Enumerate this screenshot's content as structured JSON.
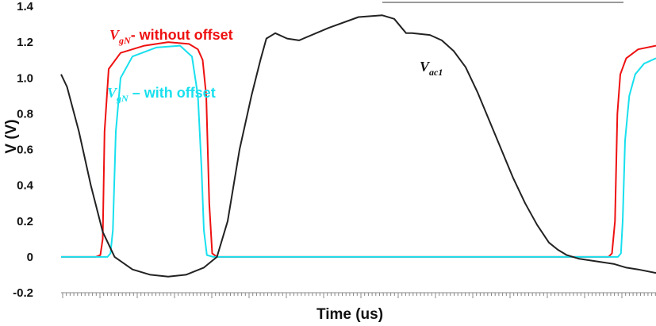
{
  "chart_data": {
    "type": "line",
    "xlabel": "Time (us)",
    "ylabel": "V (V)",
    "ylim": [
      -0.2,
      1.4
    ],
    "yticks": [
      -0.2,
      0,
      0.2,
      0.4,
      0.6,
      0.8,
      1.0,
      1.2,
      1.4
    ],
    "ytick_labels": [
      "-0.2",
      "0",
      "0.2",
      "0.4",
      "0.6",
      "0.8",
      "1.0",
      "1.2",
      "1.4"
    ],
    "xlim": [
      0,
      1
    ],
    "grid": false,
    "annotations": {
      "red": {
        "main": "V",
        "sub": "gN",
        "suffix": "- without offset",
        "color": "#ee1111"
      },
      "cyan": {
        "main": "V",
        "sub": "gN",
        "suffix": " – with offset",
        "color": "#18e0ee"
      },
      "black": {
        "main": "V",
        "sub": "ac1",
        "color": "#111111"
      }
    },
    "series": [
      {
        "color": "#ee1111",
        "x": [
          0,
          0.058,
          0.066,
          0.07,
          0.073,
          0.08,
          0.1,
          0.14,
          0.18,
          0.215,
          0.23,
          0.238,
          0.244,
          0.249,
          0.254,
          0.262,
          0.55,
          0.92,
          0.926,
          0.931,
          0.935,
          0.94,
          0.95,
          0.97,
          1.0
        ],
        "y": [
          0,
          0,
          0.01,
          0.1,
          0.7,
          1.05,
          1.14,
          1.18,
          1.2,
          1.19,
          1.16,
          1.1,
          0.9,
          0.3,
          0.02,
          0,
          0,
          0,
          0.02,
          0.2,
          0.8,
          1.02,
          1.11,
          1.16,
          1.18
        ]
      },
      {
        "color": "#18e0ee",
        "x": [
          0,
          0.078,
          0.083,
          0.087,
          0.092,
          0.1,
          0.12,
          0.16,
          0.2,
          0.22,
          0.23,
          0.236,
          0.24,
          0.245,
          0.256,
          0.262,
          0.55,
          0.936,
          0.941,
          0.944,
          0.948,
          0.955,
          0.965,
          0.98,
          1.0
        ],
        "y": [
          0,
          0,
          0.02,
          0.15,
          0.7,
          1.0,
          1.12,
          1.17,
          1.18,
          1.12,
          0.9,
          0.5,
          0.15,
          0.01,
          0,
          0,
          0,
          0,
          0.02,
          0.2,
          0.65,
          0.9,
          1.02,
          1.08,
          1.11
        ]
      },
      {
        "color": "#222222",
        "x": [
          0,
          0.01,
          0.03,
          0.05,
          0.07,
          0.09,
          0.12,
          0.15,
          0.18,
          0.21,
          0.24,
          0.262,
          0.28,
          0.3,
          0.32,
          0.335,
          0.345,
          0.36,
          0.38,
          0.4,
          0.45,
          0.5,
          0.54,
          0.56,
          0.575,
          0.58,
          0.59,
          0.62,
          0.64,
          0.66,
          0.68,
          0.7,
          0.72,
          0.74,
          0.76,
          0.78,
          0.8,
          0.82,
          0.835,
          0.85,
          0.87,
          0.89,
          0.91,
          0.93,
          0.95,
          0.97,
          1.0
        ],
        "y": [
          1.02,
          0.95,
          0.7,
          0.4,
          0.14,
          0.0,
          -0.07,
          -0.1,
          -0.11,
          -0.1,
          -0.06,
          0.0,
          0.2,
          0.6,
          0.9,
          1.1,
          1.22,
          1.25,
          1.22,
          1.21,
          1.28,
          1.34,
          1.35,
          1.33,
          1.27,
          1.25,
          1.25,
          1.24,
          1.21,
          1.15,
          1.06,
          0.92,
          0.76,
          0.6,
          0.44,
          0.3,
          0.18,
          0.08,
          0.04,
          0.01,
          -0.01,
          -0.02,
          -0.03,
          -0.04,
          -0.06,
          -0.07,
          -0.09
        ]
      }
    ]
  }
}
